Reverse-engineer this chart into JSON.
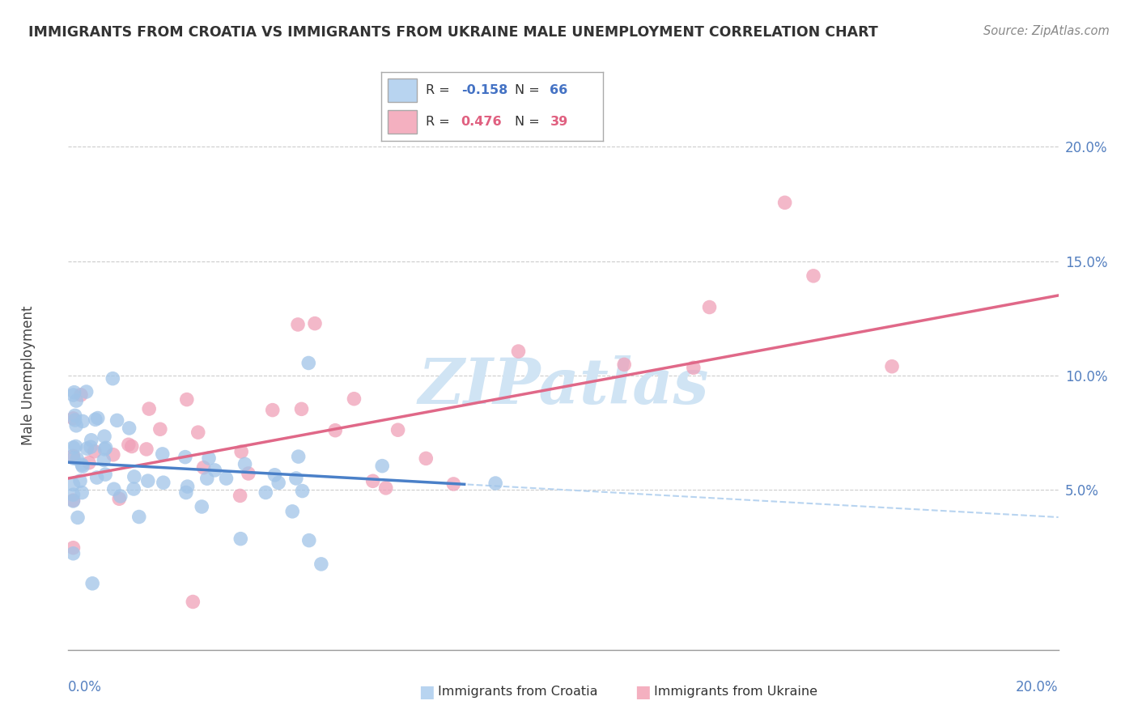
{
  "title": "IMMIGRANTS FROM CROATIA VS IMMIGRANTS FROM UKRAINE MALE UNEMPLOYMENT CORRELATION CHART",
  "source": "Source: ZipAtlas.com",
  "ylabel": "Male Unemployment",
  "croatia_color": "#a0c4e8",
  "ukraine_color": "#f0a0b8",
  "croatia_line_color": "#4a80c8",
  "ukraine_line_color": "#e06888",
  "dashed_line_color": "#b8d4f0",
  "watermark_color": "#d0e4f4",
  "xmin": 0.0,
  "xmax": 0.2,
  "ymin": -0.02,
  "ymax": 0.22,
  "background_color": "#ffffff",
  "grid_color": "#cccccc",
  "tick_color": "#5580c0",
  "title_color": "#333333",
  "source_color": "#888888",
  "legend_border_color": "#aaaaaa",
  "legend_croatia_fill": "#b8d4f0",
  "legend_ukraine_fill": "#f4b0c0",
  "croatia_R": "-0.158",
  "croatia_N": "66",
  "ukraine_R": "0.476",
  "ukraine_N": "39",
  "ytick_vals": [
    0.05,
    0.1,
    0.15,
    0.2
  ],
  "ytick_labels": [
    "5.0%",
    "10.0%",
    "15.0%",
    "20.0%"
  ],
  "croatia_trend_x0": 0.0,
  "croatia_trend_y0": 0.062,
  "croatia_trend_x1": 0.2,
  "croatia_trend_y1": 0.038,
  "ukraine_trend_x0": 0.0,
  "ukraine_trend_y0": 0.055,
  "ukraine_trend_x1": 0.2,
  "ukraine_trend_y1": 0.135
}
